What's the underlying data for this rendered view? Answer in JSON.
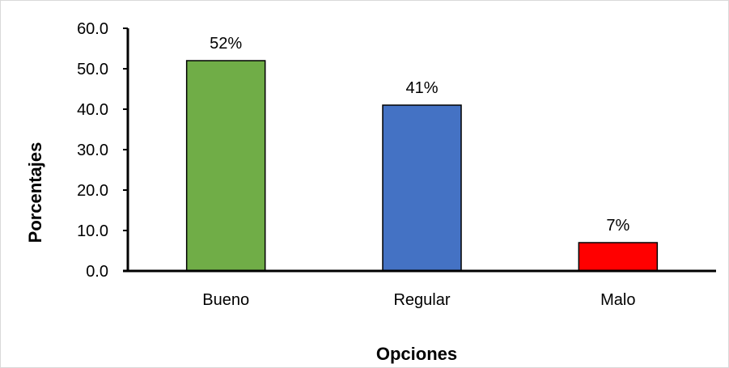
{
  "chart_data": {
    "type": "bar",
    "categories": [
      "Bueno",
      "Regular",
      "Malo"
    ],
    "values": [
      52,
      41,
      7
    ],
    "data_labels": [
      "52%",
      "41%",
      "7%"
    ],
    "bar_colors": [
      "#70ad47",
      "#4472c4",
      "#ff0000"
    ],
    "title": "",
    "xlabel": "Opciones",
    "ylabel": "Porcentajes",
    "ylim": [
      0,
      60
    ],
    "yticks": [
      "0.0",
      "10.0",
      "20.0",
      "30.0",
      "40.0",
      "50.0",
      "60.0"
    ],
    "grid": false,
    "legend": "none"
  }
}
